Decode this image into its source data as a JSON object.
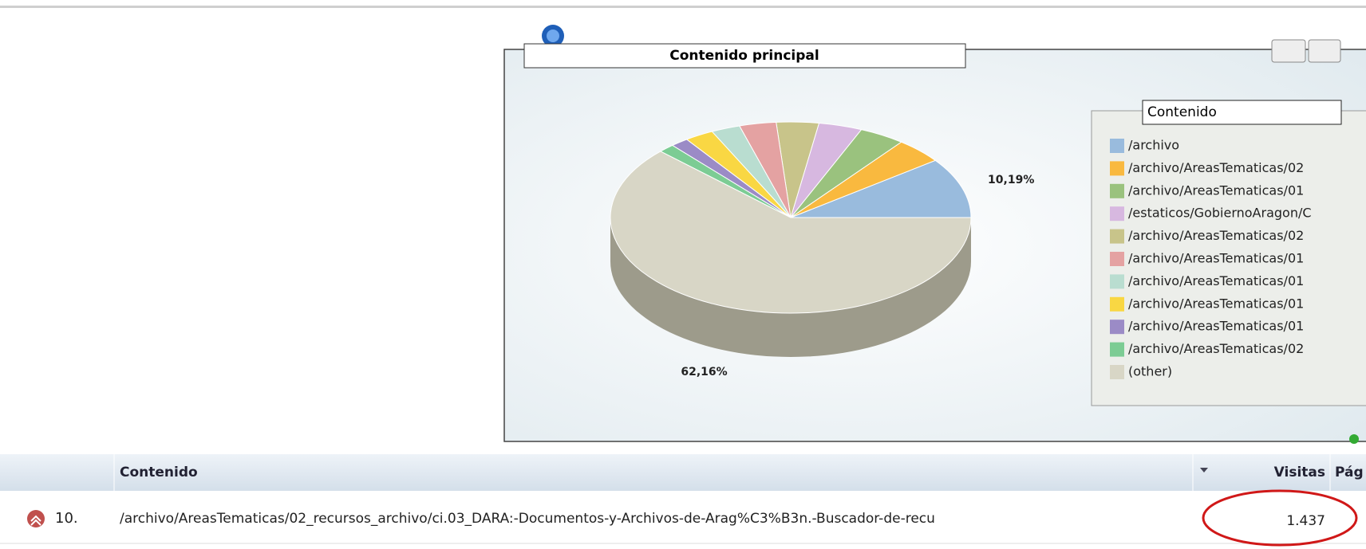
{
  "chart_data": {
    "type": "pie",
    "title": "Contenido principal",
    "legend_title": "Contenido",
    "categories": [
      "/archivo",
      "/archivo/AreasTematicas/02",
      "/archivo/AreasTematicas/01",
      "/estaticos/GobiernoAragon/C",
      "/archivo/AreasTematicas/02",
      "/archivo/AreasTematicas/01",
      "/archivo/AreasTematicas/01",
      "/archivo/AreasTematicas/01",
      "/archivo/AreasTematicas/01",
      "/archivo/AreasTematicas/02",
      "(other)"
    ],
    "values": [
      10.19,
      4.3,
      4.1,
      3.9,
      3.8,
      3.3,
      2.6,
      2.6,
      1.6,
      1.45,
      62.16
    ],
    "value_labels": [
      "10,19%",
      null,
      null,
      null,
      null,
      null,
      null,
      null,
      null,
      null,
      "62,16%"
    ],
    "colors": [
      "#99bbdd",
      "#f9b93f",
      "#9ac27e",
      "#d7b8e0",
      "#c8c48a",
      "#e4a2a2",
      "#b9ddd0",
      "#f9d743",
      "#9b8bc6",
      "#7ccc94",
      "#d8d6c6"
    ]
  },
  "table": {
    "header": [
      "Contenido",
      "Visitas",
      "Pág"
    ],
    "rows": [
      [
        "10.",
        "/archivo/AreasTematicas/02_recursos_archivo/ci.03_DARA:-Documentos-y-Archivos-de-Arag%C3%B3n.-Buscador-de-recu",
        "1.437"
      ]
    ]
  }
}
